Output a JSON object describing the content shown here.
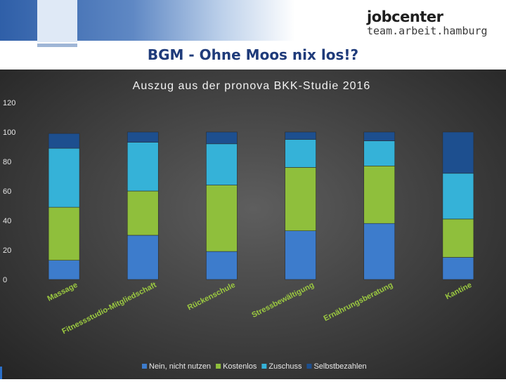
{
  "slide_title": "BGM - Ohne Moos nix los!?",
  "logo": {
    "line1": "jobcenter",
    "line2": "team.arbeit.hamburg"
  },
  "chart_data": {
    "type": "bar",
    "stacked": true,
    "title": "Auszug aus der pronova BKK-Studie 2016",
    "categories": [
      "Massage",
      "Fitnessstudio-Mitgliedschaft",
      "Rückenschule",
      "Stressbewältigung",
      "Ernährungsberatung",
      "Kantine"
    ],
    "series": [
      {
        "name": "Nein, nicht nutzen",
        "color": "#3d7ccc",
        "values": [
          13,
          30,
          19,
          33,
          38,
          15
        ]
      },
      {
        "name": "Kostenlos",
        "color": "#8fbf3c",
        "values": [
          36,
          30,
          45,
          43,
          39,
          26
        ]
      },
      {
        "name": "Zuschuss",
        "color": "#35b2d8",
        "values": [
          40,
          33,
          28,
          19,
          17,
          31
        ]
      },
      {
        "name": "Selbstbezahlen",
        "color": "#1d4f8f",
        "values": [
          10,
          7,
          8,
          5,
          6,
          28
        ]
      }
    ],
    "ylim": [
      0,
      120
    ],
    "yticks": [
      0,
      20,
      40,
      60,
      80,
      100,
      120
    ],
    "grid": false,
    "legend": "bottom"
  }
}
